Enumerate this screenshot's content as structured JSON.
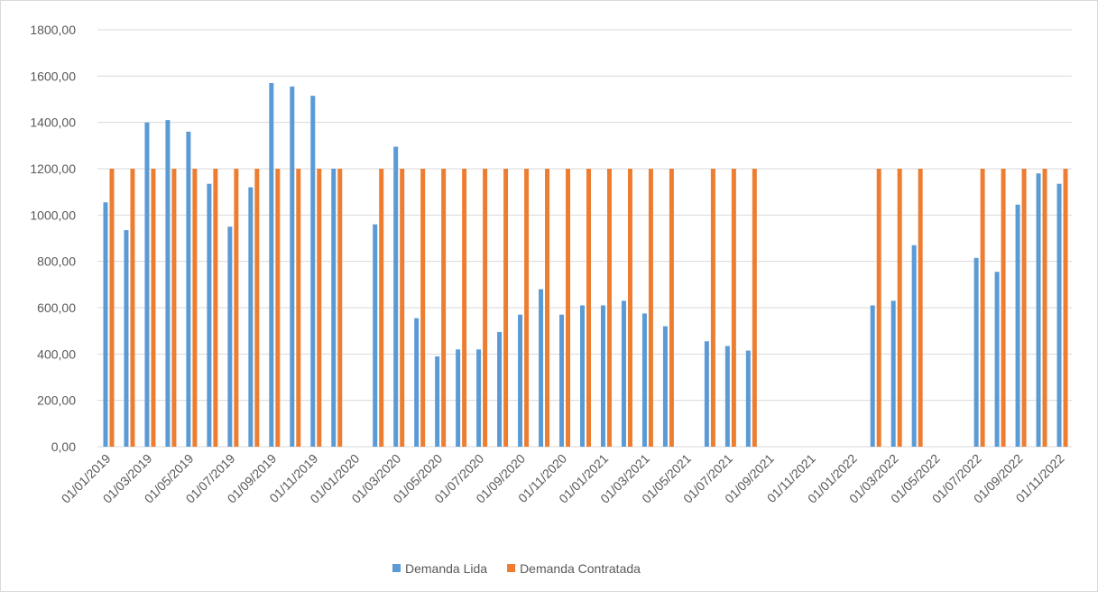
{
  "chart_data": {
    "type": "bar",
    "categories": [
      "01/01/2019",
      null,
      "01/03/2019",
      null,
      "01/05/2019",
      null,
      "01/07/2019",
      null,
      "01/09/2019",
      null,
      "01/11/2019",
      null,
      "01/01/2020",
      null,
      "01/03/2020",
      null,
      "01/05/2020",
      null,
      "01/07/2020",
      null,
      "01/09/2020",
      null,
      "01/11/2020",
      null,
      "01/01/2021",
      null,
      "01/03/2021",
      null,
      "01/05/2021",
      null,
      "01/07/2021",
      null,
      "01/09/2021",
      null,
      "01/11/2021",
      null,
      "01/01/2022",
      null,
      "01/03/2022",
      null,
      "01/05/2022",
      null,
      "01/07/2022",
      null,
      "01/09/2022",
      null,
      "01/11/2022"
    ],
    "series": [
      {
        "name": "Demanda Lida",
        "color": "#5b9bd5",
        "values": [
          1055,
          935,
          1400,
          1410,
          1360,
          1135,
          950,
          1120,
          1570,
          1555,
          1515,
          1200,
          null,
          960,
          1295,
          555,
          390,
          420,
          420,
          495,
          570,
          680,
          570,
          610,
          610,
          630,
          575,
          520,
          null,
          455,
          435,
          415,
          null,
          null,
          null,
          null,
          null,
          610,
          630,
          870,
          null,
          null,
          815,
          755,
          1045,
          1180,
          1135
        ]
      },
      {
        "name": "Demanda Contratada",
        "color": "#ed7d31",
        "values": [
          1200,
          1200,
          1200,
          1200,
          1200,
          1200,
          1200,
          1200,
          1200,
          1200,
          1200,
          1200,
          null,
          1200,
          1200,
          1200,
          1200,
          1200,
          1200,
          1200,
          1200,
          1200,
          1200,
          1200,
          1200,
          1200,
          1200,
          1200,
          null,
          1200,
          1200,
          1200,
          null,
          null,
          null,
          null,
          null,
          1200,
          1200,
          1200,
          null,
          null,
          1200,
          1200,
          1200,
          1200,
          1200
        ]
      }
    ],
    "ylim": [
      0,
      1800
    ],
    "yticks": [
      {
        "value": 0,
        "label": "0,00"
      },
      {
        "value": 200,
        "label": "200,00"
      },
      {
        "value": 400,
        "label": "400,00"
      },
      {
        "value": 600,
        "label": "600,00"
      },
      {
        "value": 800,
        "label": "800,00"
      },
      {
        "value": 1000,
        "label": "1000,00"
      },
      {
        "value": 1200,
        "label": "1200,00"
      },
      {
        "value": 1400,
        "label": "1400,00"
      },
      {
        "value": 1600,
        "label": "1600,00"
      },
      {
        "value": 1800,
        "label": "1800,00"
      }
    ],
    "grid": true,
    "legend": "bottom"
  }
}
